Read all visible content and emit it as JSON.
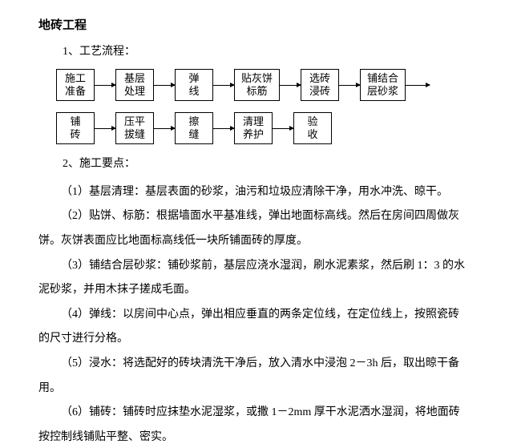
{
  "title": "地砖工程",
  "section1_label": "1、工艺流程：",
  "flow": {
    "row1": [
      {
        "line1": "施工",
        "line2": "准备"
      },
      {
        "line1": "基层",
        "line2": "处理"
      },
      {
        "line1": "弹",
        "line2": "线"
      },
      {
        "line1": "贴灰饼",
        "line2": "标筋"
      },
      {
        "line1": "选砖",
        "line2": "浸砖"
      },
      {
        "line1": "铺结合",
        "line2": "层砂浆"
      }
    ],
    "row2": [
      {
        "line1": "铺",
        "line2": "砖"
      },
      {
        "line1": "压平",
        "line2": "拔缝"
      },
      {
        "line1": "擦",
        "line2": "缝"
      },
      {
        "line1": "清理",
        "line2": "养护"
      },
      {
        "line1": "验",
        "line2": "收"
      }
    ]
  },
  "section2_label": "2、施工要点：",
  "points": {
    "p1": "（1）基层清理：基层表面的砂浆，油污和垃圾应清除干净，用水冲洗、晾干。",
    "p2a": "（2）贴饼、标筋：根据墙面水平基准线，弹出地面标高线。然后在房间四周做灰",
    "p2b": "饼。灰饼表面应比地面标高线低一块所铺面砖的厚度。",
    "p3a": "（3）铺结合层砂浆：铺砂浆前，基层应浇水湿润，刷水泥素浆，然后刷 1：3 的水",
    "p3b": "泥砂浆，并用木抹子搓成毛面。",
    "p4a": "（4）弹线：以房间中心点，弹出相应垂直的两条定位线，在定位线上，按照瓷砖",
    "p4b": "的尺寸进行分格。",
    "p5a": "（5）浸水：将选配好的砖块清洗干净后，放入清水中浸泡 2－3h 后，取出晾干备",
    "p5b": "用。",
    "p6a": "（6）铺砖：铺砖时应抹垫水泥湿浆，或撒 1－2mm 厚干水泥洒水湿润，将地面砖",
    "p6b": "按控制线铺贴平整、密实。"
  },
  "colors": {
    "text": "#000000",
    "background": "#ffffff",
    "border": "#000000"
  }
}
